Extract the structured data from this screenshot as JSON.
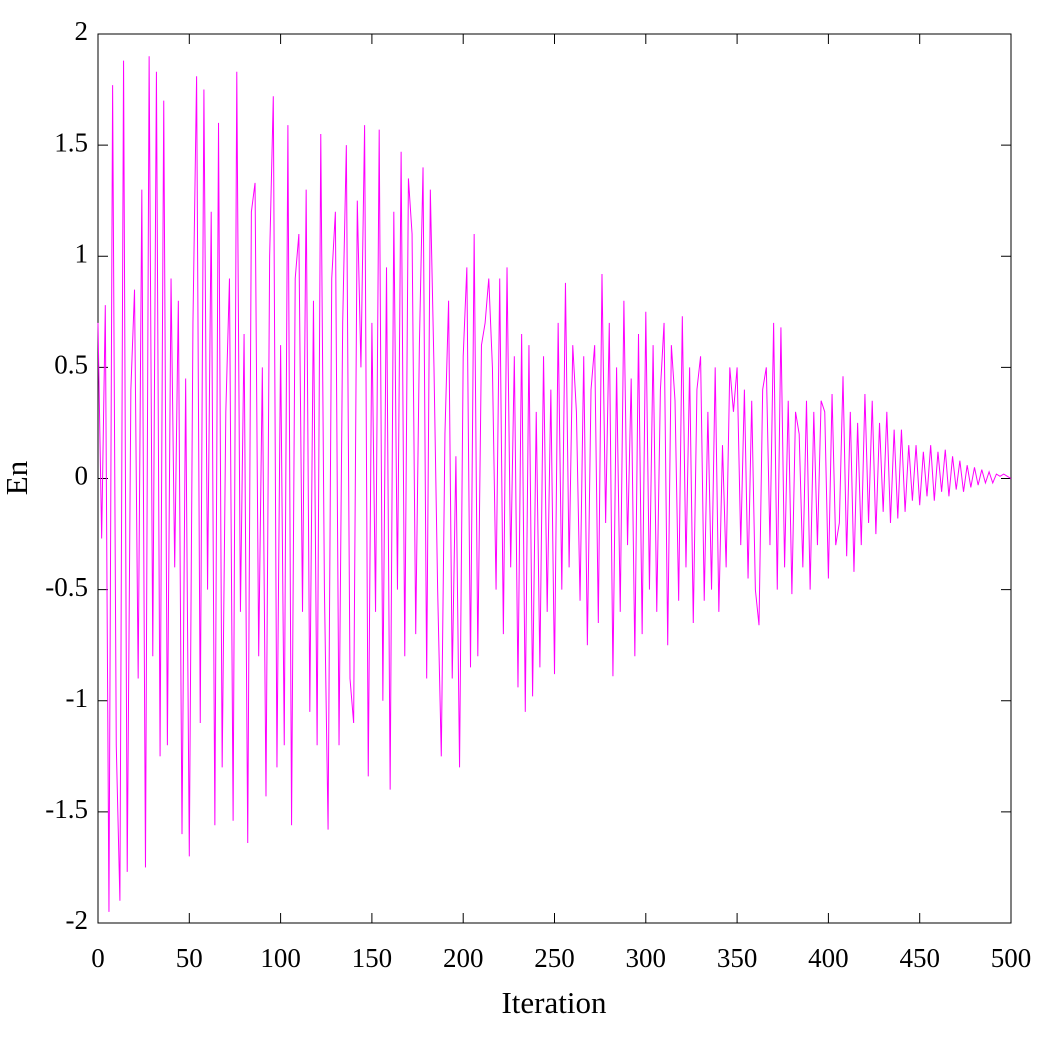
{
  "chart_data": {
    "type": "line",
    "x_label": "Iteration",
    "y_label": "En",
    "xlim": [
      0,
      500
    ],
    "ylim": [
      -2,
      2
    ],
    "xticks": [
      0,
      50,
      100,
      150,
      200,
      250,
      300,
      350,
      400,
      450,
      500
    ],
    "yticks": [
      -2,
      -1.5,
      -1,
      -0.5,
      0,
      0.5,
      1,
      1.5,
      2
    ],
    "grid": false,
    "x": [
      0,
      2,
      4,
      6,
      8,
      10,
      12,
      14,
      16,
      18,
      20,
      22,
      24,
      26,
      28,
      30,
      32,
      34,
      36,
      38,
      40,
      42,
      44,
      46,
      48,
      50,
      52,
      54,
      56,
      58,
      60,
      62,
      64,
      66,
      68,
      70,
      72,
      74,
      76,
      78,
      80,
      82,
      84,
      86,
      88,
      90,
      92,
      94,
      96,
      98,
      100,
      102,
      104,
      106,
      108,
      110,
      112,
      114,
      116,
      118,
      120,
      122,
      124,
      126,
      128,
      130,
      132,
      134,
      136,
      138,
      140,
      142,
      144,
      146,
      148,
      150,
      152,
      154,
      156,
      158,
      160,
      162,
      164,
      166,
      168,
      170,
      172,
      174,
      176,
      178,
      180,
      182,
      184,
      186,
      188,
      190,
      192,
      194,
      196,
      198,
      200,
      202,
      204,
      206,
      208,
      210,
      212,
      214,
      216,
      218,
      220,
      222,
      224,
      226,
      228,
      230,
      232,
      234,
      236,
      238,
      240,
      242,
      244,
      246,
      248,
      250,
      252,
      254,
      256,
      258,
      260,
      262,
      264,
      266,
      268,
      270,
      272,
      274,
      276,
      278,
      280,
      282,
      284,
      286,
      288,
      290,
      292,
      294,
      296,
      298,
      300,
      302,
      304,
      306,
      308,
      310,
      312,
      314,
      316,
      318,
      320,
      322,
      324,
      326,
      328,
      330,
      332,
      334,
      336,
      338,
      340,
      342,
      344,
      346,
      348,
      350,
      352,
      354,
      356,
      358,
      360,
      362,
      364,
      366,
      368,
      370,
      372,
      374,
      376,
      378,
      380,
      382,
      384,
      386,
      388,
      390,
      392,
      394,
      396,
      398,
      400,
      402,
      404,
      406,
      408,
      410,
      412,
      414,
      416,
      418,
      420,
      422,
      424,
      426,
      428,
      430,
      432,
      434,
      436,
      438,
      440,
      442,
      444,
      446,
      448,
      450,
      452,
      454,
      456,
      458,
      460,
      462,
      464,
      466,
      468,
      470,
      472,
      474,
      476,
      478,
      480,
      482,
      484,
      486,
      488,
      490,
      492,
      494,
      496,
      498,
      500
    ],
    "series": [
      {
        "color": "#ff00ff",
        "values": [
          0.7,
          -0.27,
          0.78,
          -1.95,
          1.77,
          -1.2,
          -1.9,
          1.88,
          -1.77,
          0.4,
          0.85,
          -0.9,
          1.3,
          -1.75,
          1.9,
          -0.8,
          1.83,
          -1.25,
          1.7,
          -1.2,
          0.9,
          -0.4,
          0.8,
          -1.6,
          0.45,
          -1.7,
          0.7,
          1.81,
          -1.1,
          1.75,
          -0.5,
          1.2,
          -1.56,
          1.6,
          -1.3,
          0.3,
          0.9,
          -1.54,
          1.83,
          -0.6,
          0.65,
          -1.64,
          1.2,
          1.33,
          -0.8,
          0.5,
          -1.43,
          1.0,
          1.72,
          -1.3,
          0.6,
          -1.2,
          1.59,
          -1.56,
          0.9,
          1.1,
          -0.6,
          1.3,
          -1.05,
          0.8,
          -1.2,
          1.55,
          -0.5,
          -1.58,
          0.9,
          1.2,
          -1.2,
          0.7,
          1.5,
          -0.9,
          -1.1,
          1.25,
          0.5,
          1.59,
          -1.34,
          0.7,
          -0.6,
          1.57,
          -1.0,
          0.95,
          -1.4,
          1.2,
          -0.5,
          1.47,
          -0.8,
          1.35,
          1.1,
          -0.7,
          0.6,
          1.4,
          -0.9,
          1.3,
          0.5,
          -0.5,
          -1.25,
          0.2,
          0.8,
          -0.9,
          0.1,
          -1.3,
          0.55,
          0.95,
          -0.85,
          1.1,
          -0.8,
          0.6,
          0.7,
          0.9,
          0.5,
          -0.5,
          0.9,
          -0.7,
          0.95,
          -0.4,
          0.55,
          -0.94,
          0.65,
          -1.05,
          0.6,
          -0.98,
          0.3,
          -0.85,
          0.55,
          -0.6,
          0.4,
          -0.88,
          0.7,
          -0.5,
          0.88,
          -0.4,
          0.6,
          0.3,
          -0.55,
          0.55,
          -0.75,
          0.4,
          0.6,
          -0.65,
          0.92,
          -0.2,
          0.7,
          -0.89,
          0.5,
          -0.6,
          0.8,
          -0.3,
          0.45,
          -0.8,
          0.65,
          -0.7,
          0.75,
          -0.5,
          0.6,
          -0.6,
          0.4,
          0.7,
          -0.75,
          0.6,
          0.35,
          -0.55,
          0.73,
          -0.4,
          0.5,
          -0.65,
          0.4,
          0.55,
          -0.55,
          0.3,
          -0.5,
          0.5,
          -0.6,
          0.15,
          -0.4,
          0.5,
          0.3,
          0.5,
          -0.3,
          0.4,
          -0.45,
          0.35,
          -0.5,
          -0.66,
          0.4,
          0.5,
          -0.3,
          0.7,
          -0.5,
          0.68,
          -0.4,
          0.35,
          -0.52,
          0.3,
          0.2,
          -0.4,
          0.35,
          -0.5,
          0.3,
          -0.3,
          0.35,
          0.3,
          -0.45,
          0.38,
          -0.3,
          -0.2,
          0.46,
          -0.35,
          0.3,
          -0.42,
          0.25,
          -0.3,
          0.38,
          -0.2,
          0.35,
          -0.25,
          0.25,
          -0.15,
          0.3,
          -0.2,
          0.22,
          -0.18,
          0.22,
          -0.15,
          0.15,
          -0.1,
          0.15,
          -0.12,
          0.12,
          -0.08,
          0.15,
          -0.1,
          0.12,
          -0.06,
          0.13,
          -0.08,
          0.1,
          -0.05,
          0.08,
          -0.06,
          0.06,
          -0.04,
          0.05,
          -0.03,
          0.04,
          -0.02,
          0.03,
          -0.02,
          0.02,
          0.01,
          0.02,
          0.01,
          0.0
        ]
      }
    ]
  }
}
